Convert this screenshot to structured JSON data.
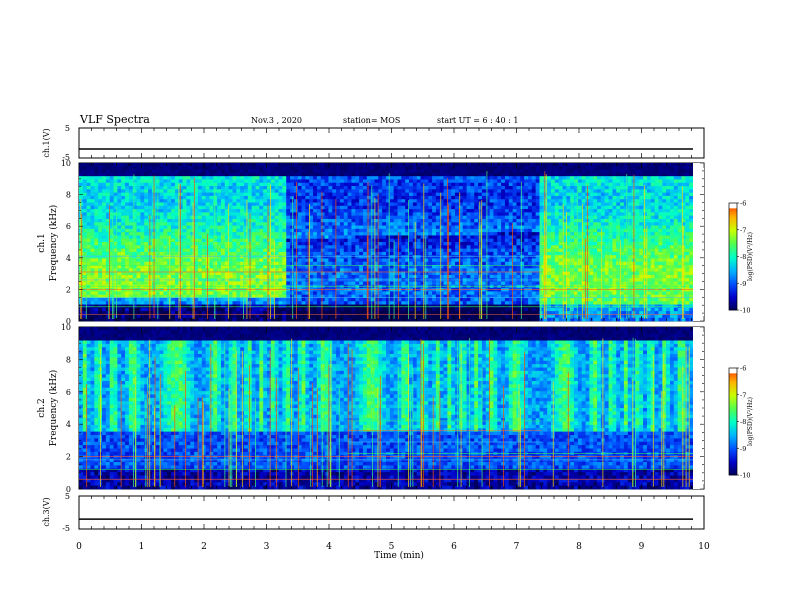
{
  "header": {
    "title": "VLF Spectra",
    "date": "Nov.3 , 2020",
    "station": "station= MOS",
    "start": "start UT =  6 : 40 : 1"
  },
  "colors": {
    "scale": [
      "#000050",
      "#0000c8",
      "#0050ff",
      "#00b4ff",
      "#00ffc8",
      "#50ff50",
      "#c8ff00",
      "#ffb400",
      "#ff3200",
      "#ffffff"
    ],
    "background": "#000030"
  },
  "chart_data": [
    {
      "type": "line",
      "name": "ch1-voltage",
      "ylabel": "ch.1(V)",
      "ylim": [
        -5,
        5
      ],
      "yticks": [
        "5",
        "-5"
      ],
      "x": [
        0,
        10
      ],
      "y": [
        -2,
        -2
      ]
    },
    {
      "type": "heatmap",
      "name": "ch1-spectrogram",
      "ylabel": "ch.1\nFrequency (kHz)",
      "ylim": [
        0,
        10
      ],
      "yticks": [
        "0",
        "2",
        "4",
        "6",
        "8",
        "10"
      ],
      "xlim": [
        0,
        10
      ],
      "colorbar": {
        "label": "log(PSD)(V²/Hz)",
        "range": [
          -10,
          -6
        ],
        "ticks": [
          "-6",
          "-7",
          "-8",
          "-9",
          "-10"
        ]
      }
    },
    {
      "type": "heatmap",
      "name": "ch2-spectrogram",
      "ylabel": "ch.2\nFrequency (kHz)",
      "ylim": [
        0,
        10
      ],
      "yticks": [
        "0",
        "2",
        "4",
        "6",
        "8",
        "10"
      ],
      "xlim": [
        0,
        10
      ],
      "colorbar": {
        "label": "log(PSD)(V²/Hz)",
        "range": [
          -10,
          -6
        ],
        "ticks": [
          "-6",
          "-7",
          "-8",
          "-9",
          "-10"
        ]
      }
    },
    {
      "type": "line",
      "name": "ch3-voltage",
      "ylabel": "ch.3(V)",
      "ylim": [
        -5,
        5
      ],
      "yticks": [
        "5",
        "-5"
      ],
      "x": [
        0,
        10
      ],
      "y": [
        -2,
        -2
      ]
    }
  ],
  "xaxis": {
    "label": "Time (min)",
    "ticks": [
      "0",
      "1",
      "2",
      "3",
      "4",
      "5",
      "6",
      "7",
      "8",
      "9",
      "10"
    ],
    "range": [
      0,
      10
    ]
  }
}
